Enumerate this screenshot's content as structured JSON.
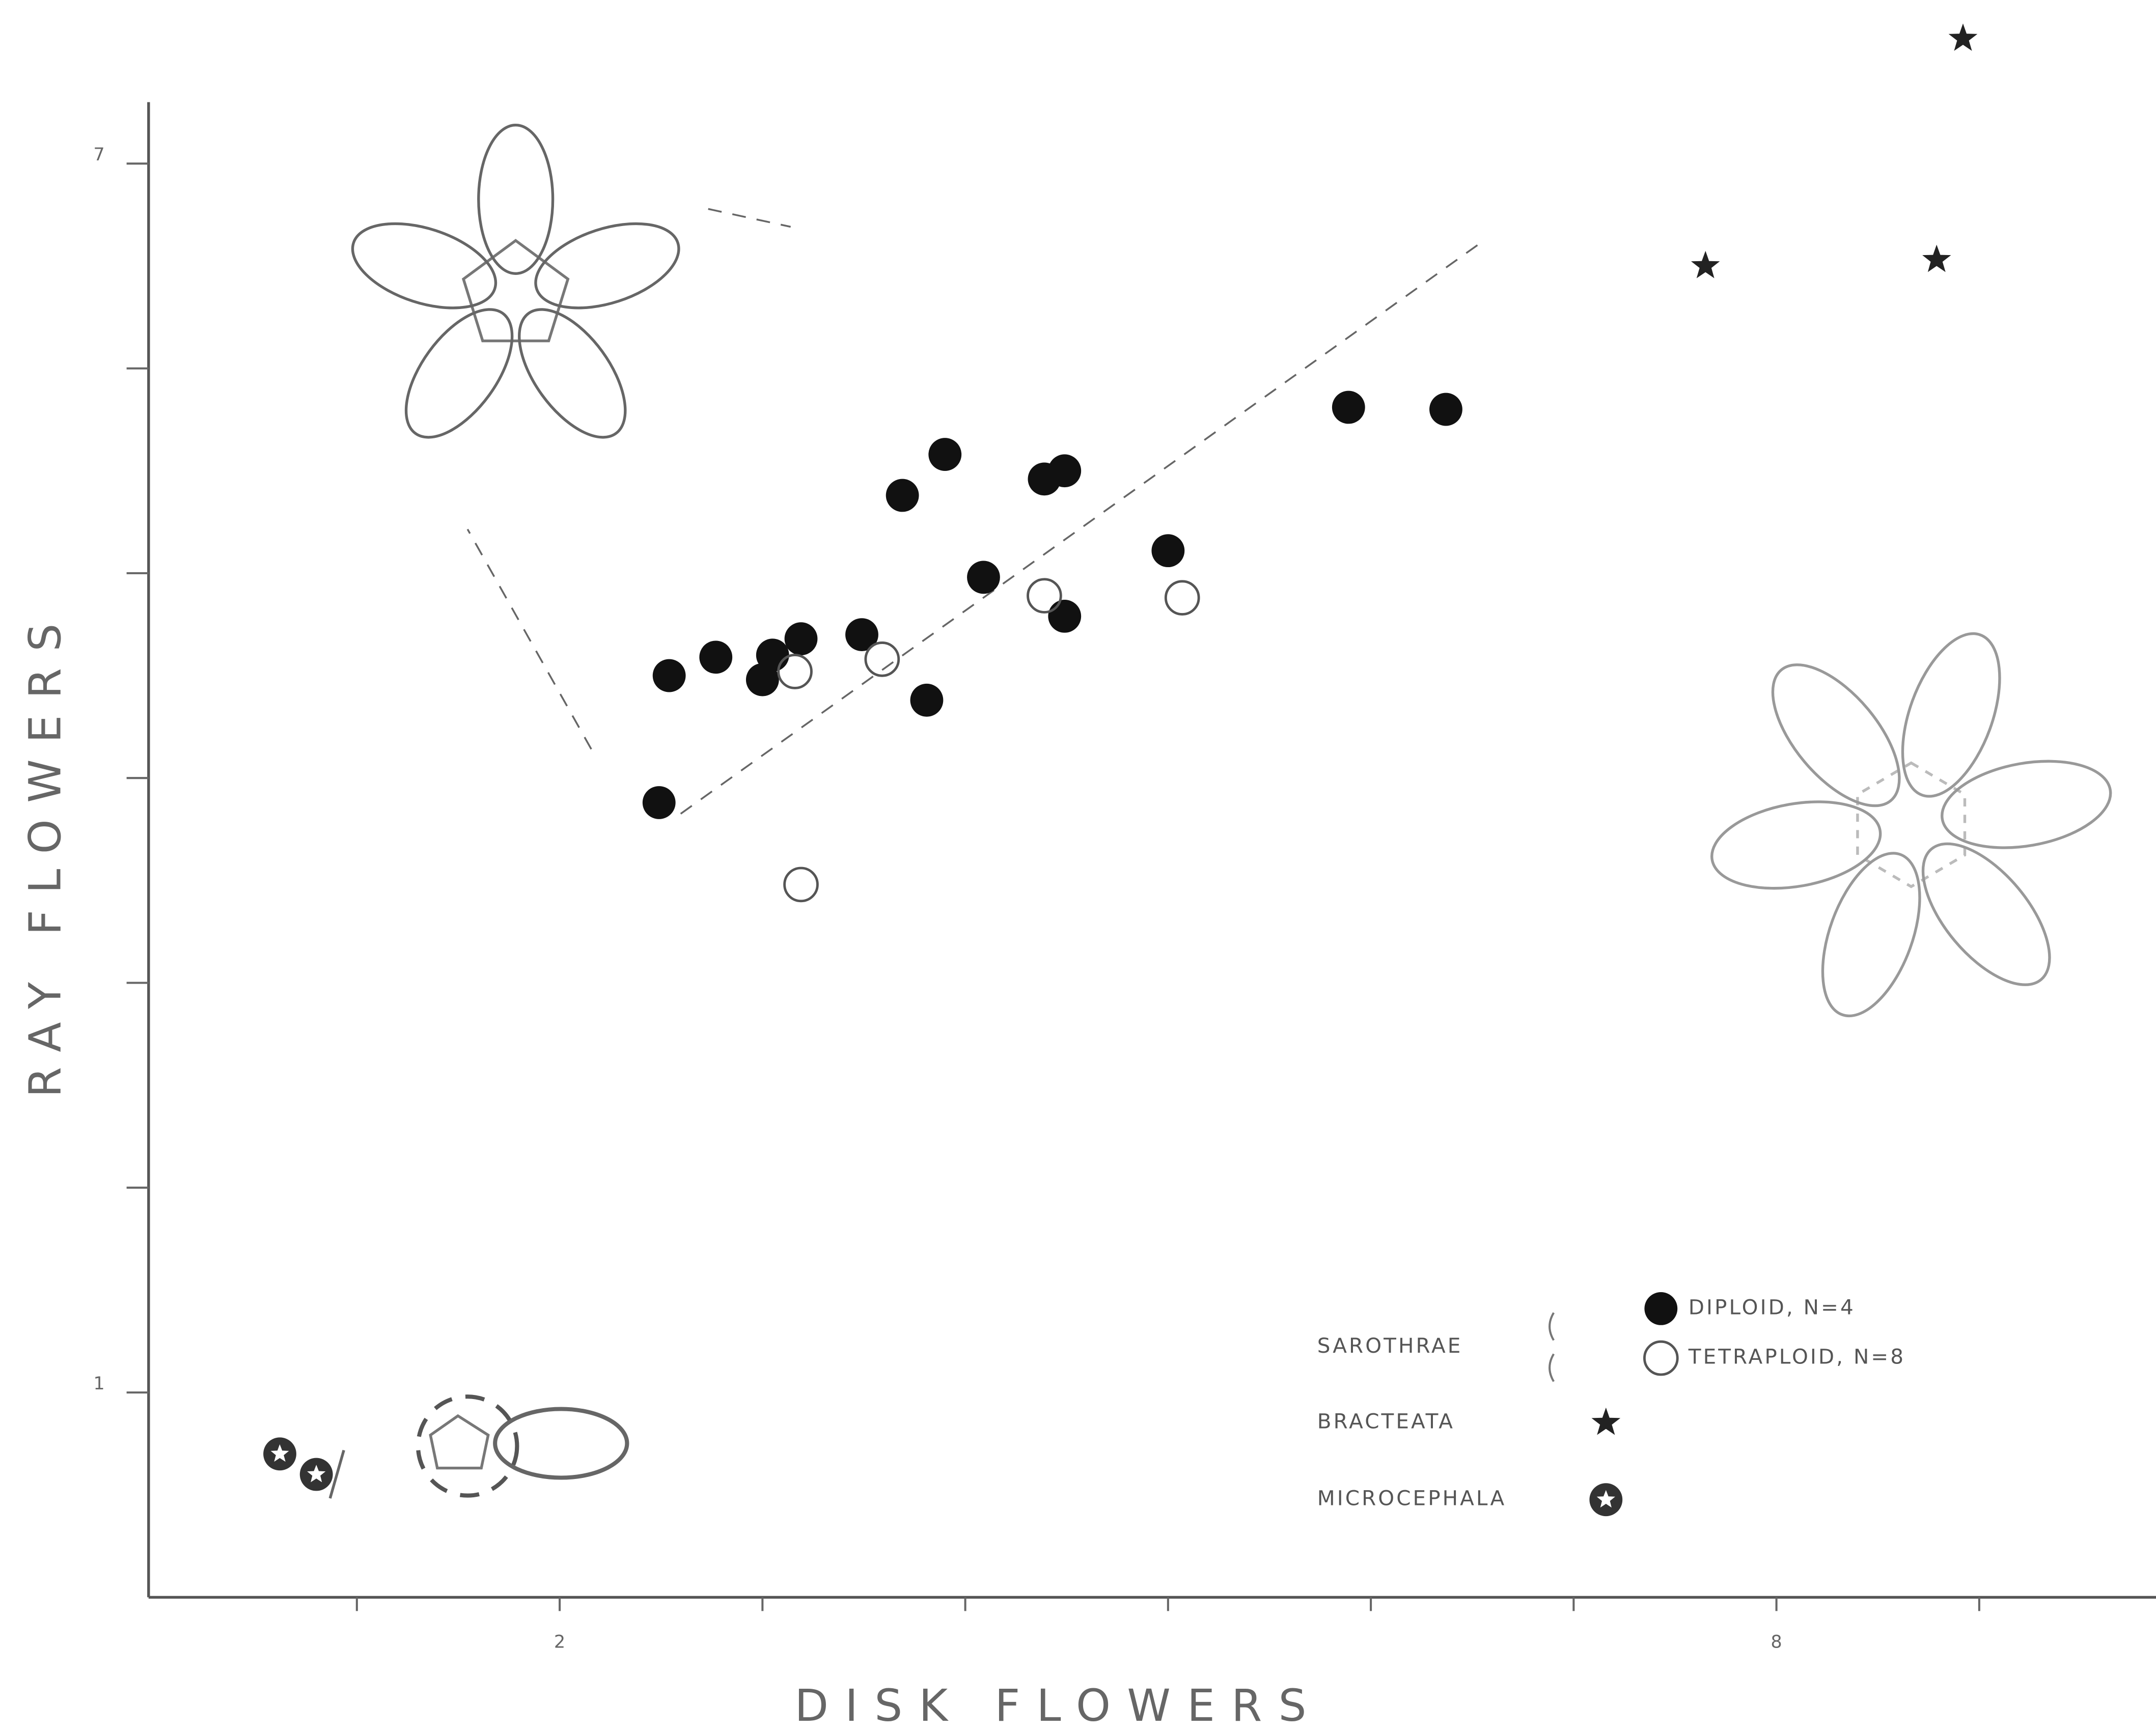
{
  "chart_data": {
    "type": "scatter",
    "x_label": "DISK FLOWERS",
    "y_label": "RAY FLOWERS",
    "xlim": [
      0,
      9.9
    ],
    "ylim": [
      0,
      7.3
    ],
    "xticks": [
      2,
      8
    ],
    "yticks": [
      1,
      7
    ],
    "x_minor_ticks": [
      1,
      3,
      4,
      5,
      6,
      7,
      9
    ],
    "y_minor_ticks": [
      2,
      3,
      4,
      5,
      6
    ],
    "legend_group": "SAROTHRAE",
    "series": [
      {
        "name": "DIPLOID, N=4",
        "marker": "filled-circle",
        "color": "#111111",
        "group": true,
        "x": [
          2.49,
          2.54,
          2.77,
          3.05,
          3.0,
          3.19,
          3.49,
          3.81,
          3.69,
          3.9,
          4.09,
          4.39,
          4.49,
          4.49,
          5.0,
          5.89,
          6.37
        ],
        "values": [
          3.88,
          4.5,
          4.59,
          4.6,
          4.48,
          4.68,
          4.7,
          4.38,
          5.38,
          5.58,
          4.98,
          5.46,
          5.5,
          4.79,
          5.11,
          5.81,
          5.8
        ]
      },
      {
        "name": "TETRAPLOID, N=8",
        "marker": "open-circle",
        "color": "#555555",
        "group": true,
        "x": [
          3.16,
          3.59,
          4.39,
          5.07,
          3.19
        ],
        "values": [
          4.52,
          4.58,
          4.89,
          4.88,
          3.48
        ]
      },
      {
        "name": "BRACTEATA",
        "marker": "star",
        "color": "#222222",
        "group": false,
        "x": [
          7.65,
          8.79,
          8.92
        ],
        "values": [
          6.5,
          6.53,
          7.61
        ]
      },
      {
        "name": "MICROCEPHALA",
        "marker": "ringed-star",
        "color": "#333333",
        "group": false,
        "x": [
          0.62,
          0.8
        ],
        "values": [
          0.7,
          0.6
        ]
      }
    ]
  }
}
